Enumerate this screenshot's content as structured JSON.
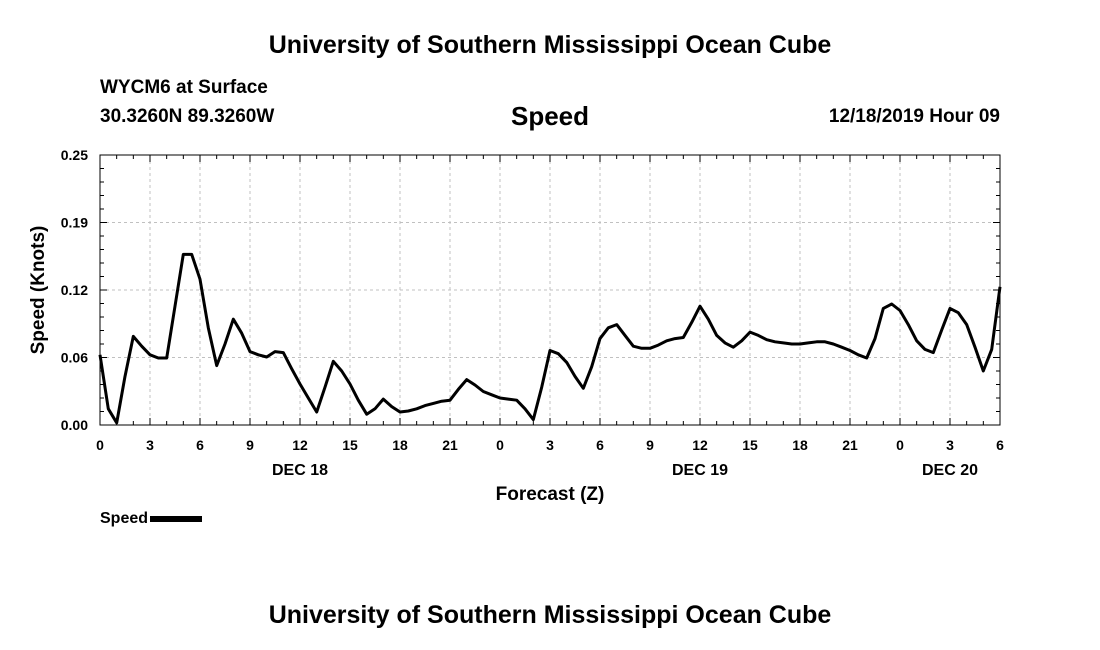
{
  "header": {
    "title": "University of Southern Mississippi Ocean Cube",
    "station": "WYCM6 at Surface",
    "coords": "30.3260N 89.3260W",
    "variable": "Speed",
    "datetime": "12/18/2019 Hour 09"
  },
  "footer": {
    "title": "University of Southern Mississippi Ocean Cube"
  },
  "legend": {
    "label": "Speed"
  },
  "colors": {
    "line": "#000000",
    "grid": "#c0c0c0"
  },
  "chart_data": {
    "type": "line",
    "title": "Speed",
    "xlabel": "Forecast (Z)",
    "ylabel": "Speed (Knots)",
    "xlim": [
      0,
      54
    ],
    "ylim": [
      0,
      0.25
    ],
    "x_ticks": [
      0,
      3,
      6,
      9,
      12,
      15,
      18,
      21,
      24,
      27,
      30,
      33,
      36,
      39,
      42,
      45,
      48,
      51,
      54
    ],
    "x_tick_labels": [
      "0",
      "3",
      "6",
      "9",
      "12",
      "15",
      "18",
      "21",
      "0",
      "3",
      "6",
      "9",
      "12",
      "15",
      "18",
      "21",
      "0",
      "3",
      "6"
    ],
    "y_ticks": [
      0,
      0.0625,
      0.125,
      0.1875,
      0.25
    ],
    "y_tick_labels": [
      "0.00",
      "0.06",
      "0.12",
      "0.19",
      "0.25"
    ],
    "day_labels": [
      {
        "x": 12,
        "label": "DEC 18"
      },
      {
        "x": 36,
        "label": "DEC 19"
      },
      {
        "x": 51,
        "label": "DEC 20"
      }
    ],
    "series": [
      {
        "name": "Speed",
        "x": [
          0,
          0.5,
          1,
          1.5,
          2,
          2.5,
          3,
          3.5,
          4,
          4.5,
          5,
          5.5,
          6,
          6.5,
          7,
          7.5,
          8,
          8.5,
          9,
          9.5,
          10,
          10.5,
          11,
          11.5,
          12,
          12.5,
          13,
          13.5,
          14,
          14.5,
          15,
          15.5,
          16,
          16.5,
          17,
          17.5,
          18,
          18.5,
          19,
          19.5,
          20,
          20.5,
          21,
          21.5,
          22,
          22.5,
          23,
          23.5,
          24,
          24.5,
          25,
          25.5,
          26,
          26.5,
          27,
          27.5,
          28,
          28.5,
          29,
          29.5,
          30,
          30.5,
          31,
          31.5,
          32,
          32.5,
          33,
          33.5,
          34,
          34.5,
          35,
          35.5,
          36,
          36.5,
          37,
          37.5,
          38,
          38.5,
          39,
          39.5,
          40,
          40.5,
          41,
          41.5,
          42,
          42.5,
          43,
          43.5,
          44,
          44.5,
          45,
          45.5,
          46,
          46.5,
          47,
          47.5,
          48,
          48.5,
          49,
          49.5,
          50,
          50.5,
          51,
          51.5,
          52,
          52.5,
          53,
          53.5,
          54
        ],
        "values": [
          0.065,
          0.015,
          0.002,
          0.045,
          0.082,
          0.073,
          0.065,
          0.062,
          0.062,
          0.11,
          0.158,
          0.158,
          0.135,
          0.09,
          0.055,
          0.075,
          0.098,
          0.085,
          0.068,
          0.065,
          0.063,
          0.068,
          0.067,
          0.052,
          0.038,
          0.025,
          0.012,
          0.035,
          0.059,
          0.05,
          0.038,
          0.023,
          0.01,
          0.015,
          0.024,
          0.017,
          0.012,
          0.013,
          0.015,
          0.018,
          0.02,
          0.022,
          0.023,
          0.033,
          0.042,
          0.037,
          0.031,
          0.028,
          0.025,
          0.024,
          0.023,
          0.015,
          0.005,
          0.035,
          0.069,
          0.066,
          0.058,
          0.045,
          0.034,
          0.054,
          0.08,
          0.09,
          0.093,
          0.083,
          0.073,
          0.071,
          0.071,
          0.074,
          0.078,
          0.08,
          0.081,
          0.095,
          0.11,
          0.098,
          0.083,
          0.076,
          0.072,
          0.078,
          0.086,
          0.083,
          0.079,
          0.077,
          0.076,
          0.075,
          0.075,
          0.076,
          0.077,
          0.077,
          0.075,
          0.072,
          0.069,
          0.065,
          0.062,
          0.08,
          0.108,
          0.112,
          0.106,
          0.093,
          0.078,
          0.07,
          0.067,
          0.088,
          0.108,
          0.104,
          0.093,
          0.072,
          0.05,
          0.07,
          0.128
        ]
      }
    ]
  }
}
